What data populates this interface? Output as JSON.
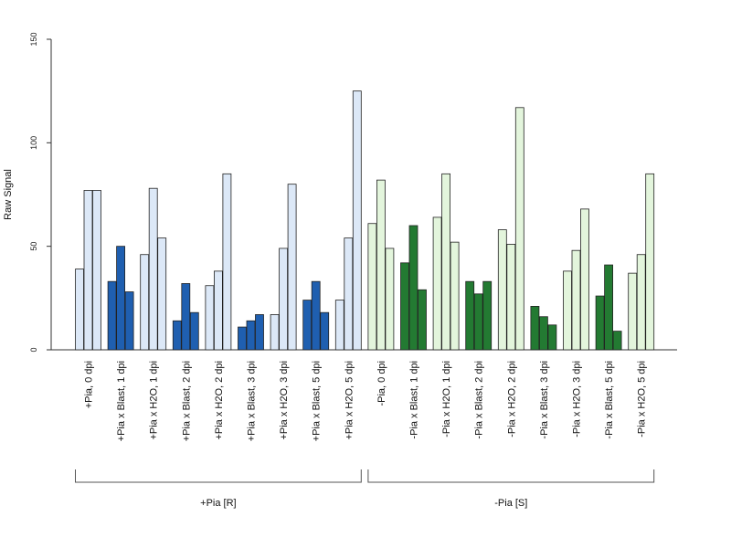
{
  "chart_data": {
    "type": "bar",
    "ylabel": "Raw Signal",
    "ylim": [
      0,
      150
    ],
    "yticks": [
      0,
      50,
      100,
      150
    ],
    "grid": false,
    "categories": [
      "+Pia, 0 dpi",
      "+Pia x Blast, 1 dpi",
      "+Pia x H2O, 1 dpi",
      "+Pia x Blast, 2 dpi",
      "+Pia x H2O, 2 dpi",
      "+Pia x Blast, 3 dpi",
      "+Pia x H2O, 3 dpi",
      "+Pia x Blast, 5 dpi",
      "+Pia x H2O, 5 dpi",
      "-Pia, 0 dpi",
      "-Pia x Blast, 1 dpi",
      "-Pia x H2O, 1 dpi",
      "-Pia x Blast, 2 dpi",
      "-Pia x H2O, 2 dpi",
      "-Pia x Blast, 3 dpi",
      "-Pia x H2O, 3 dpi",
      "-Pia x Blast, 5 dpi",
      "-Pia x H2O, 5 dpi"
    ],
    "bar_colors": [
      "#dce8f7",
      "#1f5fb0",
      "#dce8f7",
      "#1f5fb0",
      "#dce8f7",
      "#1f5fb0",
      "#dce8f7",
      "#1f5fb0",
      "#dce8f7",
      "#e3f5dc",
      "#237a32",
      "#e3f5dc",
      "#237a32",
      "#e3f5dc",
      "#237a32",
      "#e3f5dc",
      "#237a32",
      "#e3f5dc"
    ],
    "values": [
      [
        39,
        77,
        77
      ],
      [
        33,
        50,
        28
      ],
      [
        46,
        78,
        54
      ],
      [
        14,
        32,
        18
      ],
      [
        31,
        38,
        85
      ],
      [
        11,
        14,
        17
      ],
      [
        17,
        49,
        80
      ],
      [
        24,
        33,
        18
      ],
      [
        24,
        54,
        125
      ],
      [
        61,
        82,
        49
      ],
      [
        42,
        60,
        29
      ],
      [
        64,
        85,
        52
      ],
      [
        33,
        27,
        33
      ],
      [
        58,
        51,
        117
      ],
      [
        21,
        16,
        12
      ],
      [
        38,
        48,
        68
      ],
      [
        26,
        41,
        9
      ],
      [
        37,
        46,
        85
      ]
    ],
    "groups": [
      {
        "label": "+Pia [R]",
        "range": [
          0,
          8
        ]
      },
      {
        "label": "-Pia [S]",
        "range": [
          9,
          17
        ]
      }
    ]
  }
}
